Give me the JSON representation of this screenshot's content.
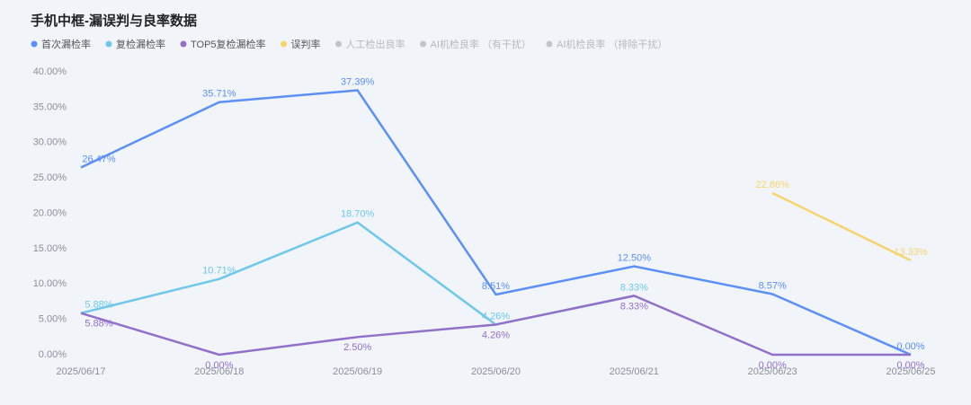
{
  "chart_data": {
    "type": "line",
    "title": "手机中框-漏误判与良率数据",
    "categories": [
      "2025/06/17",
      "2025/06/18",
      "2025/06/19",
      "2025/06/20",
      "2025/06/21",
      "2025/06/23",
      "2025/06/25"
    ],
    "series": [
      {
        "name": "首次漏检率",
        "color": "#5b8ff9",
        "visible": true,
        "label_side": "above",
        "values": [
          26.47,
          35.71,
          37.39,
          8.51,
          12.5,
          8.57,
          0
        ],
        "value_labels": [
          "26.47%",
          "35.71%",
          "37.39%",
          "8.51%",
          "12.50%",
          "8.57%",
          "0.00%"
        ]
      },
      {
        "name": "复检漏检率",
        "color": "#6dc8ec",
        "visible": true,
        "label_side": "above",
        "values": [
          5.88,
          10.71,
          18.7,
          4.26,
          8.33,
          null,
          null
        ],
        "value_labels": [
          "5.88%",
          "10.71%",
          "18.70%",
          "4.26%",
          "8.33%",
          null,
          null
        ]
      },
      {
        "name": "TOP5复检漏检率",
        "color": "#9270ca",
        "visible": true,
        "label_side": "below",
        "values": [
          5.88,
          0,
          2.5,
          4.26,
          8.33,
          0,
          0
        ],
        "value_labels": [
          "5.88%",
          "0.00%",
          "2.50%",
          "4.26%",
          "8.33%",
          "0.00%",
          "0.00%"
        ]
      },
      {
        "name": "误判率",
        "color": "#f6d36b",
        "visible": true,
        "label_side": "above",
        "values": [
          null,
          null,
          null,
          null,
          null,
          22.86,
          13.33
        ],
        "value_labels": [
          null,
          null,
          null,
          null,
          null,
          "22.86%",
          "13.33%"
        ]
      },
      {
        "name": "人工检出良率",
        "color": "#c4c4c4",
        "visible": false,
        "values": [
          null,
          null,
          null,
          null,
          null,
          null,
          null
        ]
      },
      {
        "name": "AI机检良率 （有干扰）",
        "color": "#c4c4c4",
        "visible": false,
        "values": [
          null,
          null,
          null,
          null,
          null,
          null,
          null
        ]
      },
      {
        "name": "AI机检良率 （排除干扰）",
        "color": "#c4c4c4",
        "visible": false,
        "values": [
          null,
          null,
          null,
          null,
          null,
          null,
          null
        ]
      }
    ],
    "ylim": [
      0,
      40
    ],
    "yticks": [
      {
        "value": 0,
        "label": "0.00%"
      },
      {
        "value": 5,
        "label": "5.00%"
      },
      {
        "value": 10,
        "label": "10.00%"
      },
      {
        "value": 15,
        "label": "15.00%"
      },
      {
        "value": 20,
        "label": "20.00%"
      },
      {
        "value": 25,
        "label": "25.00%"
      },
      {
        "value": 30,
        "label": "30.00%"
      },
      {
        "value": 35,
        "label": "35.00%"
      },
      {
        "value": 40,
        "label": "40.00%"
      }
    ],
    "grid": false,
    "legend": "top-left"
  }
}
